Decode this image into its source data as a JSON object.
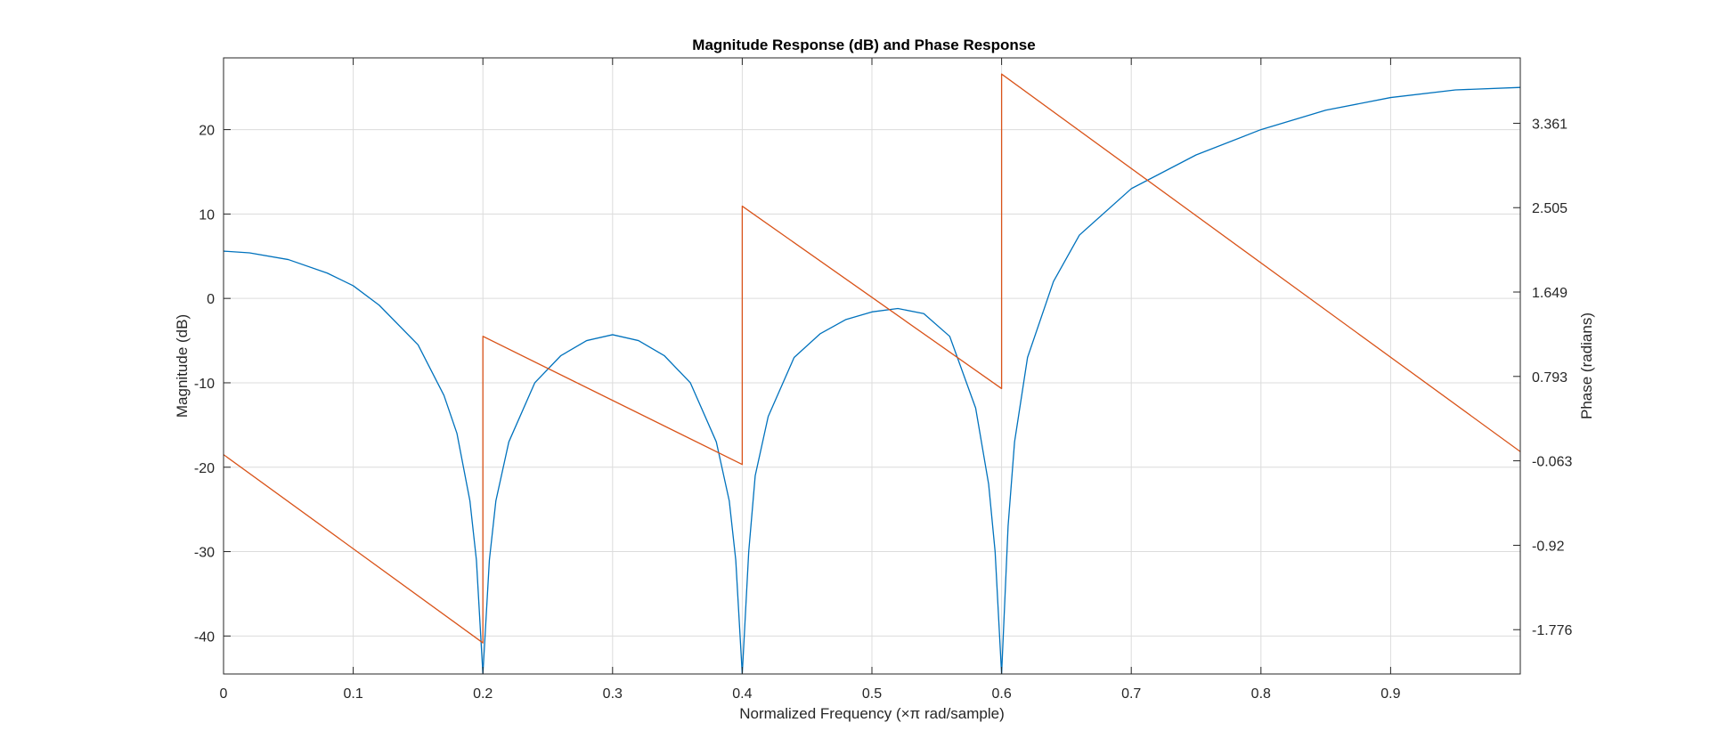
{
  "chart_data": {
    "type": "line",
    "title": "Magnitude Response (dB) and Phase Response",
    "xlabel": "Normalized Frequency (×π rad/sample)",
    "ylabel_left": "Magnitude (dB)",
    "ylabel_right": "Phase (radians)",
    "xlim": [
      0,
      1
    ],
    "ylim_left": [
      -44.5,
      28.5
    ],
    "ylim_right": [
      -2.2255,
      4.0245
    ],
    "grid": true,
    "x_ticks": [
      "0",
      "0.1",
      "0.2",
      "0.3",
      "0.4",
      "0.5",
      "0.6",
      "0.7",
      "0.8",
      "0.9"
    ],
    "x_tick_values": [
      0,
      0.1,
      0.2,
      0.3,
      0.4,
      0.5,
      0.6,
      0.7,
      0.8,
      0.9
    ],
    "y_left_ticks": [
      "20",
      "10",
      "0",
      "-10",
      "-20",
      "-30",
      "-40"
    ],
    "y_left_tick_values": [
      20,
      10,
      0,
      -10,
      -20,
      -30,
      -40
    ],
    "y_right_ticks": [
      "3.361",
      "2.505",
      "1.649",
      "0.793",
      "-0.063",
      "-0.92",
      "-1.776"
    ],
    "y_right_tick_values": [
      3.361,
      2.505,
      1.649,
      0.793,
      -0.063,
      -0.92,
      -1.776
    ],
    "series": [
      {
        "role": "magnitude",
        "axis": "left",
        "color": "#0072bd",
        "x": [
          0,
          0.02,
          0.05,
          0.08,
          0.1,
          0.12,
          0.15,
          0.17,
          0.18,
          0.19,
          0.195,
          0.2,
          0.205,
          0.21,
          0.22,
          0.24,
          0.26,
          0.28,
          0.3,
          0.32,
          0.34,
          0.36,
          0.38,
          0.39,
          0.395,
          0.4,
          0.405,
          0.41,
          0.42,
          0.44,
          0.46,
          0.48,
          0.5,
          0.52,
          0.54,
          0.56,
          0.58,
          0.59,
          0.595,
          0.6,
          0.605,
          0.61,
          0.62,
          0.64,
          0.66,
          0.7,
          0.75,
          0.8,
          0.85,
          0.9,
          0.95,
          1.0
        ],
        "y": [
          5.6,
          5.4,
          4.6,
          3.0,
          1.5,
          -0.8,
          -5.5,
          -11.5,
          -16,
          -24,
          -31,
          -44.5,
          -31,
          -24,
          -17,
          -10,
          -6.8,
          -5,
          -4.3,
          -5,
          -6.8,
          -10,
          -17,
          -24,
          -31,
          -44.5,
          -30,
          -21,
          -14,
          -7,
          -4.2,
          -2.5,
          -1.6,
          -1.2,
          -1.8,
          -4.5,
          -13,
          -22,
          -30,
          -44.5,
          -27,
          -17,
          -7,
          2,
          7.5,
          13,
          17,
          20,
          22.3,
          23.8,
          24.7,
          25
        ]
      },
      {
        "role": "phase",
        "axis": "right",
        "color": "#d95319",
        "x": [
          0,
          0.2,
          0.2,
          0.4,
          0.4,
          0.6,
          0.6,
          1.0
        ],
        "y": [
          0.0,
          -1.91,
          1.2,
          -0.1,
          2.52,
          0.67,
          3.86,
          0.03
        ]
      }
    ]
  }
}
